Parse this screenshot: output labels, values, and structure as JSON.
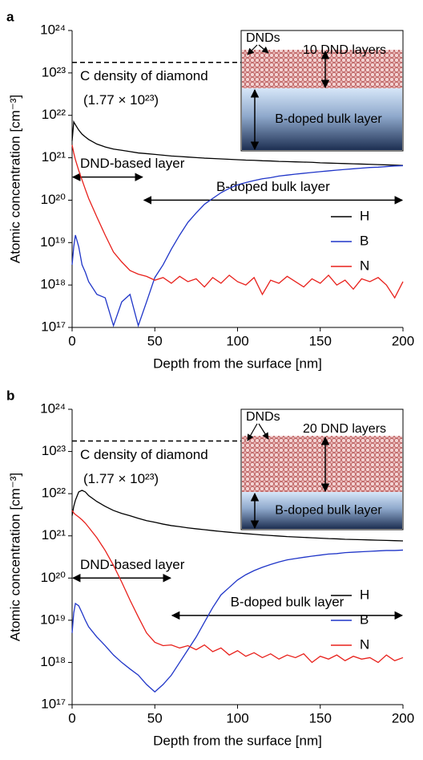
{
  "chart_data": [
    {
      "type": "line",
      "panel_label": "a",
      "xlabel": "Depth from the surface [nm]",
      "ylabel": "Atomic concentration [cm⁻³]",
      "yscale": "log",
      "xlim": [
        0,
        200
      ],
      "ylim": [
        1e+17,
        1e+24
      ],
      "xticks": [
        0,
        50,
        100,
        150,
        200
      ],
      "yticks": [
        {
          "value": 1e+17,
          "label": "10¹⁷"
        },
        {
          "value": 1e+18,
          "label": "10¹⁸"
        },
        {
          "value": 1e+19,
          "label": "10¹⁹"
        },
        {
          "value": 1e+20,
          "label": "10²⁰"
        },
        {
          "value": 1e+21,
          "label": "10²¹"
        },
        {
          "value": 1e+22,
          "label": "10²²"
        },
        {
          "value": 1e+23,
          "label": "10²³"
        },
        {
          "value": 1e+24,
          "label": "10²⁴"
        }
      ],
      "legend": "right",
      "reference_line": {
        "value": 1.77e+23,
        "label": "C density of diamond",
        "value_label": "(1.77 × 10²³)"
      },
      "annotations": [
        {
          "text": "DND-based layer",
          "x": [
            0,
            43
          ],
          "y": 3.5e+20
        },
        {
          "text": "B-doped bulk layer",
          "x": [
            43,
            200
          ],
          "y": 1e+20
        }
      ],
      "inset": {
        "top_label": "DNDs",
        "layer_label": "10 DND layers",
        "bulk_label": "B-doped bulk layer"
      },
      "x": [
        0,
        1,
        2,
        4,
        6,
        8,
        10,
        15,
        20,
        25,
        30,
        35,
        40,
        45,
        50,
        55,
        60,
        65,
        70,
        75,
        80,
        85,
        90,
        95,
        100,
        105,
        110,
        115,
        120,
        125,
        130,
        135,
        140,
        145,
        150,
        155,
        160,
        165,
        170,
        175,
        180,
        185,
        190,
        195,
        200
      ],
      "series": [
        {
          "name": "H",
          "color": "#000000",
          "values": [
            2.5e+21,
            7e+21,
            6e+21,
            4.5e+21,
            3.6e+21,
            3.1e+21,
            2.7e+21,
            2.1e+21,
            1.8e+21,
            1.6e+21,
            1.5e+21,
            1.4e+21,
            1.3e+21,
            1.25e+21,
            1.2e+21,
            1.15e+21,
            1.1e+21,
            1.07e+21,
            1.04e+21,
            1.01e+21,
            9.8e+20,
            9.6e+20,
            9.4e+20,
            9.2e+20,
            9e+20,
            8.8e+20,
            8.7e+20,
            8.5e+20,
            8.4e+20,
            8.2e+20,
            8.1e+20,
            8e+20,
            7.9e+20,
            7.8e+20,
            7.6e+20,
            7.5e+20,
            7.4e+20,
            7.3e+20,
            7.2e+20,
            7.1e+20,
            7e+20,
            6.9e+20,
            6.8e+20,
            6.7e+20,
            6.6e+20
          ]
        },
        {
          "name": "B",
          "color": "#1f35c8",
          "values": [
            3e+18,
            8e+18,
            1.5e+19,
            8e+18,
            3e+18,
            2e+18,
            1.2e+18,
            6e+17,
            5e+17,
            1.1e+17,
            4e+17,
            6e+17,
            1.1e+17,
            4e+17,
            1.5e+18,
            3e+18,
            7e+18,
            1.5e+19,
            3e+19,
            5e+19,
            8e+19,
            1.1e+20,
            1.5e+20,
            1.9e+20,
            2.3e+20,
            2.6e+20,
            2.9e+20,
            3.2e+20,
            3.4e+20,
            3.7e+20,
            3.9e+20,
            4.1e+20,
            4.3e+20,
            4.5e+20,
            4.7e+20,
            4.9e+20,
            5.1e+20,
            5.3e+20,
            5.5e+20,
            5.7e+20,
            5.9e+20,
            6e+20,
            6.2e+20,
            6.4e+20,
            6.5e+20
          ]
        },
        {
          "name": "N",
          "color": "#e8201b",
          "values": [
            2e+21,
            1.3e+21,
            9e+20,
            5e+20,
            3e+20,
            1.8e+20,
            1.1e+20,
            4e+19,
            1.5e+19,
            6e+18,
            3.5e+18,
            2.2e+18,
            1.8e+18,
            1.6e+18,
            1.3e+18,
            1.5e+18,
            1.1e+18,
            1.6e+18,
            1.2e+18,
            1.4e+18,
            9e+17,
            1.5e+18,
            1.1e+18,
            1.7e+18,
            1.2e+18,
            1e+18,
            1.5e+18,
            6e+17,
            1.3e+18,
            1.1e+18,
            1.6e+18,
            1.2e+18,
            9e+17,
            1.4e+18,
            1.1e+18,
            1.7e+18,
            1e+18,
            1.3e+18,
            8e+17,
            1.4e+18,
            1.2e+18,
            1.5e+18,
            1e+18,
            5e+17,
            1.2e+18
          ]
        }
      ]
    },
    {
      "type": "line",
      "panel_label": "b",
      "xlabel": "Depth from the surface [nm]",
      "ylabel": "Atomic concentration [cm⁻³]",
      "yscale": "log",
      "xlim": [
        0,
        200
      ],
      "ylim": [
        1e+17,
        1e+24
      ],
      "xticks": [
        0,
        50,
        100,
        150,
        200
      ],
      "yticks": [
        {
          "value": 1e+17,
          "label": "10¹⁷"
        },
        {
          "value": 1e+18,
          "label": "10¹⁸"
        },
        {
          "value": 1e+19,
          "label": "10¹⁹"
        },
        {
          "value": 1e+20,
          "label": "10²⁰"
        },
        {
          "value": 1e+21,
          "label": "10²¹"
        },
        {
          "value": 1e+22,
          "label": "10²²"
        },
        {
          "value": 1e+23,
          "label": "10²³"
        },
        {
          "value": 1e+24,
          "label": "10²⁴"
        }
      ],
      "legend": "right",
      "reference_line": {
        "value": 1.77e+23,
        "label": "C density of diamond",
        "value_label": "(1.77 × 10²³)"
      },
      "annotations": [
        {
          "text": "DND-based layer",
          "x": [
            0,
            60
          ],
          "y": 1e+20
        },
        {
          "text": "B-doped bulk layer",
          "x": [
            60,
            200
          ],
          "y": 1.3e+19
        }
      ],
      "inset": {
        "top_label": "DNDs",
        "layer_label": "20 DND layers",
        "bulk_label": "B-doped bulk layer"
      },
      "x": [
        0,
        1,
        2,
        4,
        6,
        8,
        10,
        15,
        20,
        25,
        30,
        35,
        40,
        45,
        50,
        55,
        60,
        65,
        70,
        75,
        80,
        85,
        90,
        95,
        100,
        105,
        110,
        115,
        120,
        125,
        130,
        135,
        140,
        145,
        150,
        155,
        160,
        165,
        170,
        175,
        180,
        185,
        190,
        195,
        200
      ],
      "series": [
        {
          "name": "H",
          "color": "#000000",
          "values": [
            3e+21,
            5e+21,
            7e+21,
            1.1e+22,
            1.2e+22,
            1.1e+22,
            9e+21,
            6.5e+21,
            5e+21,
            4e+21,
            3.4e+21,
            3e+21,
            2.6e+21,
            2.3e+21,
            2.1e+21,
            1.9e+21,
            1.75e+21,
            1.65e+21,
            1.55e+21,
            1.47e+21,
            1.4e+21,
            1.33e+21,
            1.27e+21,
            1.22e+21,
            1.17e+21,
            1.13e+21,
            1.09e+21,
            1.05e+21,
            1.02e+21,
            9.9e+20,
            9.6e+20,
            9.4e+20,
            9.2e+20,
            9e+20,
            8.8e+20,
            8.6e+20,
            8.5e+20,
            8.3e+20,
            8.2e+20,
            8.1e+20,
            8e+20,
            7.9e+20,
            7.8e+20,
            7.7e+20,
            7.6e+20
          ]
        },
        {
          "name": "B",
          "color": "#1f35c8",
          "values": [
            5e+18,
            1.5e+19,
            2.5e+19,
            2.2e+19,
            1.5e+19,
            1e+19,
            7e+18,
            4e+18,
            2.5e+18,
            1.5e+18,
            1e+18,
            7e+17,
            5e+17,
            3e+17,
            2e+17,
            3e+17,
            5e+17,
            1e+18,
            2e+18,
            4e+18,
            9e+18,
            2e+19,
            4e+19,
            6e+19,
            9e+19,
            1.2e+20,
            1.5e+20,
            1.8e+20,
            2.1e+20,
            2.4e+20,
            2.7e+20,
            2.9e+20,
            3.1e+20,
            3.3e+20,
            3.5e+20,
            3.7e+20,
            3.8e+20,
            4e+20,
            4.1e+20,
            4.2e+20,
            4.3e+20,
            4.4e+20,
            4.5e+20,
            4.5e+20,
            4.6e+20
          ]
        },
        {
          "name": "N",
          "color": "#e8201b",
          "values": [
            4e+21,
            3.5e+21,
            3.2e+21,
            2.8e+21,
            2.4e+21,
            2e+21,
            1.6e+21,
            9e+20,
            4.5e+20,
            2e+20,
            8e+19,
            3e+19,
            1.2e+19,
            5e+18,
            3e+18,
            2.5e+18,
            2.6e+18,
            2.2e+18,
            2.5e+18,
            2e+18,
            2.6e+18,
            1.8e+18,
            2.2e+18,
            1.5e+18,
            1.9e+18,
            1.4e+18,
            1.7e+18,
            1.3e+18,
            1.6e+18,
            1.2e+18,
            1.5e+18,
            1.3e+18,
            1.6e+18,
            1e+18,
            1.4e+18,
            1.2e+18,
            1.5e+18,
            1.1e+18,
            1.4e+18,
            1.2e+18,
            1.3e+18,
            1e+18,
            1.5e+18,
            1.1e+18,
            1.3e+18
          ]
        }
      ]
    }
  ]
}
